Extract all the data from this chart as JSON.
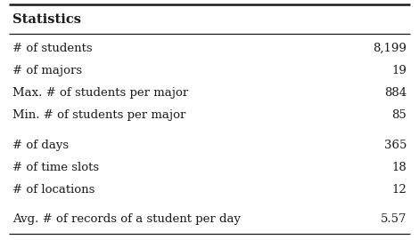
{
  "title": "Statistics",
  "rows": [
    [
      "# of students",
      "8,199"
    ],
    [
      "# of majors",
      "19"
    ],
    [
      "Max. # of students per major",
      "884"
    ],
    [
      "Min. # of students per major",
      "85"
    ],
    [
      "# of days",
      "365"
    ],
    [
      "# of time slots",
      "18"
    ],
    [
      "# of locations",
      "12"
    ],
    [
      "Avg. # of records of a student per day",
      "5.57"
    ]
  ],
  "group_sizes": [
    4,
    3,
    1
  ],
  "bg_color": "#ffffff",
  "text_color": "#1a1a1a",
  "title_fontsize": 10.5,
  "body_fontsize": 9.5
}
